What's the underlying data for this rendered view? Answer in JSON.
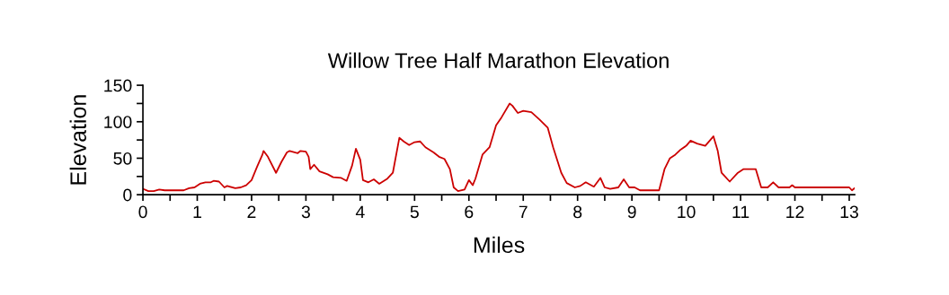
{
  "chart_data": {
    "type": "line",
    "title": "Willow Tree Half Marathon Elevation",
    "xlabel": "Miles",
    "ylabel": "Elevation",
    "xlim": [
      0,
      13.1
    ],
    "xticks": [
      0,
      1,
      2,
      3,
      4,
      5,
      6,
      7,
      8,
      9,
      10,
      11,
      12,
      13
    ],
    "ylim": [
      0,
      150
    ],
    "yticks": [
      0,
      50,
      100,
      150
    ],
    "grid": false,
    "legend": false,
    "marker": "none",
    "line_style": "solid",
    "series": [
      {
        "color": "#cc0000",
        "x": [
          0,
          0.1,
          0.2,
          0.3,
          0.4,
          0.75,
          0.85,
          0.95,
          1.05,
          1.15,
          1.25,
          1.3,
          1.4,
          1.5,
          1.55,
          1.7,
          1.8,
          1.9,
          2.0,
          2.1,
          2.2,
          2.22,
          2.3,
          2.45,
          2.55,
          2.65,
          2.7,
          2.85,
          2.9,
          3.0,
          3.05,
          3.08,
          3.15,
          3.25,
          3.4,
          3.5,
          3.65,
          3.75,
          3.85,
          3.92,
          4.0,
          4.05,
          4.15,
          4.25,
          4.35,
          4.5,
          4.6,
          4.72,
          4.8,
          4.9,
          5.0,
          5.1,
          5.2,
          5.35,
          5.45,
          5.55,
          5.65,
          5.72,
          5.8,
          5.92,
          6.0,
          6.07,
          6.12,
          6.25,
          6.38,
          6.5,
          6.6,
          6.75,
          6.8,
          6.9,
          7.0,
          7.15,
          7.3,
          7.45,
          7.55,
          7.7,
          7.8,
          7.95,
          8.05,
          8.15,
          8.3,
          8.42,
          8.5,
          8.6,
          8.75,
          8.85,
          8.95,
          9.05,
          9.15,
          9.5,
          9.6,
          9.7,
          9.8,
          9.9,
          10.0,
          10.08,
          10.2,
          10.35,
          10.5,
          10.58,
          10.65,
          10.8,
          10.95,
          11.05,
          11.28,
          11.38,
          11.5,
          11.6,
          11.7,
          11.9,
          11.95,
          12.0,
          13.0,
          13.05,
          13.1
        ],
        "values": [
          8,
          5,
          5,
          7,
          6,
          6,
          9,
          10,
          15,
          17,
          17,
          19,
          18,
          10,
          12,
          9,
          10,
          13,
          20,
          38,
          55,
          60,
          52,
          30,
          45,
          58,
          60,
          57,
          60,
          59,
          52,
          35,
          41,
          32,
          28,
          24,
          23,
          19,
          40,
          63,
          48,
          20,
          17,
          21,
          15,
          22,
          30,
          78,
          73,
          68,
          72,
          73,
          65,
          58,
          52,
          49,
          35,
          10,
          5,
          7,
          20,
          13,
          22,
          55,
          65,
          95,
          106,
          125,
          122,
          112,
          115,
          113,
          103,
          92,
          65,
          30,
          16,
          10,
          12,
          17,
          11,
          23,
          10,
          8,
          10,
          21,
          10,
          10,
          6,
          6,
          35,
          50,
          55,
          62,
          67,
          74,
          70,
          67,
          80,
          60,
          30,
          18,
          30,
          35,
          35,
          10,
          10,
          17,
          10,
          10,
          13,
          10,
          10,
          6,
          9
        ]
      }
    ]
  }
}
